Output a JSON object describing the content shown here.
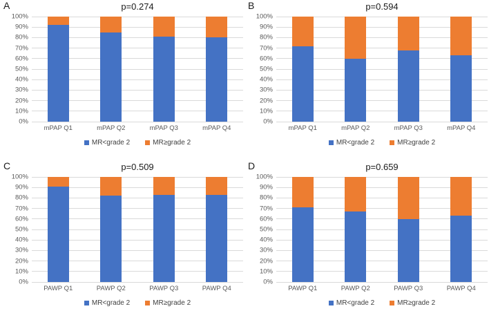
{
  "colors": {
    "series_blue": "#4472C4",
    "series_orange": "#ED7D31",
    "gridline": "#D9D9D9",
    "axis_text": "#595959",
    "title_text": "#1A1A1A"
  },
  "axis": {
    "y_ticks": [
      "100%",
      "90%",
      "80%",
      "70%",
      "60%",
      "50%",
      "40%",
      "30%",
      "20%",
      "10%",
      "0%"
    ]
  },
  "legend": {
    "items": [
      {
        "label": "MR<grade 2",
        "color": "#4472C4"
      },
      {
        "label": "MR≥grade 2",
        "color": "#ED7D31"
      }
    ]
  },
  "chart_data": [
    {
      "panel": "A",
      "type": "bar",
      "stacked": true,
      "title": "p=0.274",
      "categories": [
        "mPAP Q1",
        "mPAP Q2",
        "mPAP Q3",
        "mPAP Q4"
      ],
      "series": [
        {
          "name": "MR<grade 2",
          "color": "#4472C4",
          "values": [
            92,
            85,
            81,
            80
          ]
        },
        {
          "name": "MR≥grade 2",
          "color": "#ED7D31",
          "values": [
            8,
            15,
            19,
            20
          ]
        }
      ],
      "ylim": [
        0,
        100
      ],
      "grid": true,
      "legend_position": "bottom"
    },
    {
      "panel": "B",
      "type": "bar",
      "stacked": true,
      "title": "p=0.594",
      "categories": [
        "mPAP Q1",
        "mPAP Q2",
        "mPAP Q3",
        "mPAP Q4"
      ],
      "series": [
        {
          "name": "MR<grade 2",
          "color": "#4472C4",
          "values": [
            72,
            60,
            68,
            63
          ]
        },
        {
          "name": "MR≥grade 2",
          "color": "#ED7D31",
          "values": [
            28,
            40,
            32,
            37
          ]
        }
      ],
      "ylim": [
        0,
        100
      ],
      "grid": true,
      "legend_position": "bottom"
    },
    {
      "panel": "C",
      "type": "bar",
      "stacked": true,
      "title": "p=0.509",
      "categories": [
        "PAWP Q1",
        "PAWP Q2",
        "PAWP Q3",
        "PAWP Q4"
      ],
      "series": [
        {
          "name": "MR<grade 2",
          "color": "#4472C4",
          "values": [
            91,
            82,
            83,
            83
          ]
        },
        {
          "name": "MR≥grade 2",
          "color": "#ED7D31",
          "values": [
            9,
            18,
            17,
            17
          ]
        }
      ],
      "ylim": [
        0,
        100
      ],
      "grid": true,
      "legend_position": "bottom"
    },
    {
      "panel": "D",
      "type": "bar",
      "stacked": true,
      "title": "p=0.659",
      "categories": [
        "PAWP Q1",
        "PAWP Q2",
        "PAWP Q3",
        "PAWP Q4"
      ],
      "series": [
        {
          "name": "MR<grade 2",
          "color": "#4472C4",
          "values": [
            71,
            67,
            60,
            63
          ]
        },
        {
          "name": "MR≥grade 2",
          "color": "#ED7D31",
          "values": [
            29,
            33,
            40,
            37
          ]
        }
      ],
      "ylim": [
        0,
        100
      ],
      "grid": true,
      "legend_position": "bottom"
    }
  ]
}
